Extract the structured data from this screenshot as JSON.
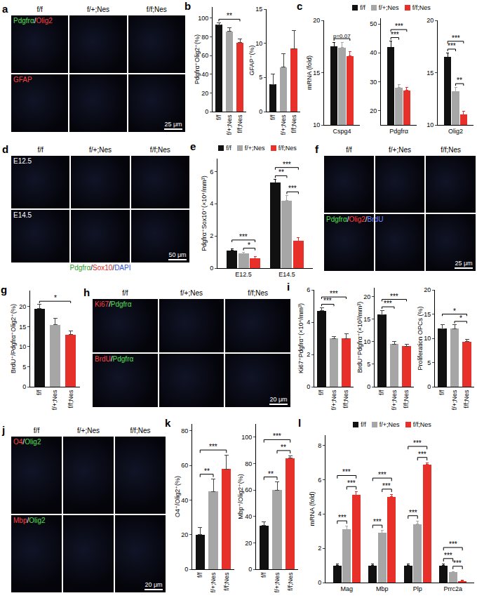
{
  "chart_data": [
    {
      "panel": "b",
      "type": "bar",
      "grid": false,
      "subplots": [
        {
          "ylabel": "Pdgfrα⁺Olig2⁺(%)",
          "ylim": [
            0,
            112
          ],
          "yticks": [
            0,
            20,
            40,
            60,
            80,
            100
          ],
          "categories": [
            "f/f",
            "f/+;Nes",
            "f/f;Nes"
          ],
          "colors": [
            "#111111",
            "#a6a6a6",
            "#e8302a"
          ],
          "values": [
            93,
            86,
            74
          ],
          "error": [
            2,
            4,
            4
          ],
          "brackets": [
            {
              "from": 0,
              "to": 2,
              "text": "**"
            }
          ]
        },
        {
          "ylabel": "GFAP⁺(%)",
          "ylim": [
            0,
            15
          ],
          "yticks": [
            0,
            5,
            10,
            15
          ],
          "categories": [
            "f/f",
            "f/+;Nes",
            "f/f;Nes"
          ],
          "colors": [
            "#111111",
            "#a6a6a6",
            "#e8302a"
          ],
          "values": [
            4,
            6.5,
            9.2
          ],
          "error": [
            1.5,
            2,
            2.7
          ],
          "brackets": []
        }
      ]
    },
    {
      "panel": "c",
      "type": "bar",
      "grid": false,
      "legend": "top",
      "subplots": [
        {
          "ylabel": "mRNA (fold)",
          "ylim": [
            10,
            20
          ],
          "yticks": [
            10,
            15,
            20
          ],
          "categories": [
            "Cspg4"
          ],
          "series": [
            {
              "name": "f/f",
              "color": "#111111",
              "values": [
                17.5
              ],
              "error": [
                0.4
              ]
            },
            {
              "name": "f/+;Nes",
              "color": "#a6a6a6",
              "values": [
                17.4
              ],
              "error": [
                0.5
              ]
            },
            {
              "name": "f/f;Nes",
              "color": "#e8302a",
              "values": [
                16.6
              ],
              "error": [
                0.4
              ]
            }
          ],
          "brackets": [
            {
              "group": 0,
              "from": 0,
              "to": 2,
              "text": "p=0.07"
            }
          ]
        },
        {
          "ylim": [
            15,
            52
          ],
          "yticks": [
            20,
            30,
            40,
            50
          ],
          "categories": [
            "Pdgfrα"
          ],
          "series": [
            {
              "name": "f/f",
              "color": "#111111",
              "values": [
                42
              ],
              "error": [
                2
              ]
            },
            {
              "name": "f/+;Nes",
              "color": "#a6a6a6",
              "values": [
                28
              ],
              "error": [
                1
              ]
            },
            {
              "name": "f/f;Nes",
              "color": "#e8302a",
              "values": [
                27
              ],
              "error": [
                1
              ]
            }
          ],
          "brackets": [
            {
              "group": 0,
              "from": 0,
              "to": 1,
              "text": "***"
            },
            {
              "group": 0,
              "from": 0,
              "to": 2,
              "text": "***"
            }
          ]
        },
        {
          "ylim": [
            10,
            20
          ],
          "yticks": [
            10,
            15,
            20
          ],
          "categories": [
            "Olig2"
          ],
          "series": [
            {
              "name": "f/f",
              "color": "#111111",
              "values": [
                16.5
              ],
              "error": [
                0.4
              ]
            },
            {
              "name": "f/+;Nes",
              "color": "#a6a6a6",
              "values": [
                13.2
              ],
              "error": [
                0.4
              ]
            },
            {
              "name": "f/f;Nes",
              "color": "#e8302a",
              "values": [
                11.0
              ],
              "error": [
                0.3
              ]
            }
          ],
          "brackets": [
            {
              "group": 0,
              "from": 0,
              "to": 1,
              "text": "***"
            },
            {
              "group": 0,
              "from": 1,
              "to": 2,
              "text": "**"
            },
            {
              "group": 0,
              "from": 0,
              "to": 2,
              "text": "***"
            }
          ]
        }
      ]
    },
    {
      "panel": "e",
      "type": "bar",
      "grid": false,
      "legend": "top",
      "subplots": [
        {
          "ylabel": "Pdgfrα⁺Sox10⁺(×10⁴/mm³)",
          "ylim": [
            0,
            6.8
          ],
          "yticks": [
            0,
            2,
            4,
            6
          ],
          "categories": [
            "E12.5",
            "E14.5"
          ],
          "series": [
            {
              "name": "f/f",
              "color": "#111111",
              "values": [
                1.1,
                5.3
              ],
              "error": [
                0.1,
                0.2
              ]
            },
            {
              "name": "f/+;Nes",
              "color": "#a6a6a6",
              "values": [
                0.9,
                4.2
              ],
              "error": [
                0.1,
                0.3
              ]
            },
            {
              "name": "f/f;Nes",
              "color": "#e8302a",
              "values": [
                0.6,
                1.7
              ],
              "error": [
                0.1,
                0.2
              ]
            }
          ],
          "brackets": [
            {
              "group": 0,
              "from": 1,
              "to": 2,
              "text": "*"
            },
            {
              "group": 0,
              "from": 0,
              "to": 2,
              "text": "***"
            },
            {
              "group": 1,
              "from": 0,
              "to": 1,
              "text": "**"
            },
            {
              "group": 1,
              "from": 1,
              "to": 2,
              "text": "***"
            },
            {
              "group": 1,
              "from": 0,
              "to": 2,
              "text": "***"
            }
          ]
        }
      ]
    },
    {
      "panel": "g",
      "type": "bar",
      "grid": false,
      "subplots": [
        {
          "ylabel": "BrdU⁺/Pdgfrα⁺Olig2⁺(%)",
          "ylim": [
            0,
            24
          ],
          "yticks": [
            0,
            5,
            10,
            15,
            20
          ],
          "categories": [
            "f/f",
            "f/+;Nes",
            "f/f;Nes"
          ],
          "colors": [
            "#111111",
            "#a6a6a6",
            "#e8302a"
          ],
          "values": [
            19.5,
            15.5,
            13
          ],
          "error": [
            1,
            1.5,
            1
          ],
          "brackets": [
            {
              "from": 0,
              "to": 2,
              "text": "*"
            }
          ]
        }
      ]
    },
    {
      "panel": "i",
      "type": "bar",
      "grid": false,
      "subplots": [
        {
          "ylabel": "Ki67⁺Pdgfrα⁺(×10⁴/mm³)",
          "ylim": [
            0,
            6
          ],
          "yticks": [
            0,
            2,
            4,
            6
          ],
          "categories": [
            "f/f",
            "f/+;Nes",
            "f/f;Nes"
          ],
          "colors": [
            "#111111",
            "#a6a6a6",
            "#e8302a"
          ],
          "values": [
            4.7,
            3.0,
            3.0
          ],
          "error": [
            0.2,
            0.1,
            0.3
          ],
          "brackets": [
            {
              "from": 0,
              "to": 1,
              "text": "***"
            },
            {
              "from": 0,
              "to": 2,
              "text": "***"
            }
          ]
        },
        {
          "ylabel": "BrdU⁺Pdgfrα⁺(×10³/mm³)",
          "ylim": [
            0,
            22
          ],
          "yticks": [
            0,
            5,
            10,
            15,
            20
          ],
          "categories": [
            "f/f",
            "f/+;Nes",
            "f/f;Nes"
          ],
          "colors": [
            "#111111",
            "#a6a6a6",
            "#e8302a"
          ],
          "values": [
            16,
            9.5,
            9
          ],
          "error": [
            1,
            0.5,
            0.5
          ],
          "brackets": [
            {
              "from": 0,
              "to": 1,
              "text": "***"
            },
            {
              "from": 0,
              "to": 2,
              "text": "***"
            }
          ]
        },
        {
          "ylabel": "Proliferation OPCs (%)",
          "ylim": [
            0,
            20
          ],
          "yticks": [
            0,
            5,
            10,
            15,
            20
          ],
          "categories": [
            "f/f",
            "f/+;Nes",
            "f/f;Nes"
          ],
          "colors": [
            "#111111",
            "#a6a6a6",
            "#e8302a"
          ],
          "values": [
            12,
            12,
            9.3
          ],
          "error": [
            0.8,
            0.8,
            0.5
          ],
          "brackets": [
            {
              "from": 1,
              "to": 2,
              "text": "*"
            },
            {
              "from": 0,
              "to": 2,
              "text": "*"
            }
          ]
        }
      ]
    },
    {
      "panel": "k",
      "type": "bar",
      "grid": false,
      "subplots": [
        {
          "ylabel": "O4⁺/Olig2⁺(%)",
          "ylim": [
            0,
            84
          ],
          "yticks": [
            0,
            20,
            40,
            60,
            80
          ],
          "categories": [
            "f/f",
            "f/+;Nes",
            "f/f;Nes"
          ],
          "colors": [
            "#111111",
            "#a6a6a6",
            "#e8302a"
          ],
          "values": [
            20,
            45,
            58
          ],
          "error": [
            4,
            7,
            8
          ],
          "brackets": [
            {
              "from": 0,
              "to": 1,
              "text": "**"
            },
            {
              "from": 0,
              "to": 2,
              "text": "***"
            }
          ]
        },
        {
          "ylabel": "Mbp⁺/Olig2⁺(%)",
          "ylim": [
            0,
            110
          ],
          "yticks": [
            0,
            20,
            40,
            60,
            80,
            100
          ],
          "categories": [
            "f/f",
            "f/+;Nes",
            "f/f;Nes"
          ],
          "colors": [
            "#111111",
            "#a6a6a6",
            "#e8302a"
          ],
          "values": [
            33,
            60,
            84
          ],
          "error": [
            3,
            6,
            2
          ],
          "brackets": [
            {
              "from": 0,
              "to": 1,
              "text": "**"
            },
            {
              "from": 1,
              "to": 2,
              "text": "**"
            },
            {
              "from": 0,
              "to": 2,
              "text": "***"
            }
          ]
        }
      ]
    },
    {
      "panel": "l",
      "type": "bar",
      "grid": false,
      "legend": "top",
      "subplots": [
        {
          "ylabel": "mRNA (fold)",
          "ylim": [
            0,
            8.6
          ],
          "yticks": [
            0,
            2,
            4,
            6,
            8
          ],
          "categories": [
            "Mag",
            "Mbp",
            "Plp",
            "Prrc2a"
          ],
          "series": [
            {
              "name": "f/f",
              "color": "#111111",
              "values": [
                1,
                1,
                1,
                1
              ],
              "error": [
                0.1,
                0.1,
                0.1,
                0.1
              ]
            },
            {
              "name": "f/+;Nes",
              "color": "#a6a6a6",
              "values": [
                3.1,
                2.9,
                3.4,
                0.6
              ],
              "error": [
                0.2,
                0.15,
                0.2,
                0.05
              ]
            },
            {
              "name": "f/f;Nes",
              "color": "#e8302a",
              "values": [
                5.1,
                5.0,
                6.9,
                0.1
              ],
              "error": [
                0.2,
                0.15,
                0.1,
                0.03
              ]
            }
          ],
          "brackets": [
            {
              "group": 0,
              "from": 0,
              "to": 1,
              "text": "***"
            },
            {
              "group": 0,
              "from": 1,
              "to": 2,
              "text": "***"
            },
            {
              "group": 0,
              "from": 0,
              "to": 2,
              "text": "***"
            },
            {
              "group": 1,
              "from": 0,
              "to": 1,
              "text": "***"
            },
            {
              "group": 1,
              "from": 1,
              "to": 2,
              "text": "***"
            },
            {
              "group": 1,
              "from": 0,
              "to": 2,
              "text": "***"
            },
            {
              "group": 2,
              "from": 0,
              "to": 1,
              "text": "***"
            },
            {
              "group": 2,
              "from": 1,
              "to": 2,
              "text": "***"
            },
            {
              "group": 2,
              "from": 0,
              "to": 2,
              "text": "***"
            },
            {
              "group": 3,
              "from": 0,
              "to": 1,
              "text": "***"
            },
            {
              "group": 3,
              "from": 1,
              "to": 2,
              "text": "***"
            },
            {
              "group": 3,
              "from": 0,
              "to": 2,
              "text": "***"
            }
          ]
        }
      ]
    }
  ],
  "image_panels": [
    {
      "panel": "a",
      "columns": [
        "f/f",
        "f/+;Nes",
        "f/f;Nes"
      ],
      "rows": [
        {
          "label": [
            {
              "text": "Pdgfrα",
              "color": "#52e052"
            },
            {
              "text": "/",
              "color": "#ffffff"
            },
            {
              "text": "Olig2",
              "color": "#ff4040"
            }
          ]
        },
        {
          "label": [
            {
              "text": "GFAP",
              "color": "#ff4040"
            }
          ]
        }
      ],
      "scale_bar": "25 μm"
    },
    {
      "panel": "d",
      "columns": [
        "f/f",
        "f/+;Nes",
        "f/f;Nes"
      ],
      "rows": [
        {
          "label": [
            {
              "text": "E12.5",
              "color": "#ffffff"
            }
          ]
        },
        {
          "label": [
            {
              "text": "E14.5",
              "color": "#ffffff"
            }
          ]
        }
      ],
      "caption": [
        {
          "text": "Pdgfrα",
          "color": "#2ca02c"
        },
        {
          "text": "/",
          "color": "#000000"
        },
        {
          "text": "Sox10",
          "color": "#e0281e"
        },
        {
          "text": "/",
          "color": "#000000"
        },
        {
          "text": "DAPI",
          "color": "#3050e0"
        }
      ],
      "scale_bar": "50 μm"
    },
    {
      "panel": "f",
      "columns": [
        "f/f",
        "f/+;Nes",
        "f/f;Nes"
      ],
      "rows": [
        {},
        {
          "label": [
            {
              "text": "Pdgfrα",
              "color": "#52e052"
            },
            {
              "text": "/",
              "color": "#ffffff"
            },
            {
              "text": "Olig2",
              "color": "#ff4040"
            },
            {
              "text": "/",
              "color": "#ffffff"
            },
            {
              "text": "BrdU",
              "color": "#6f8cff"
            }
          ]
        }
      ],
      "scale_bar": "25 μm"
    },
    {
      "panel": "h",
      "columns": [
        "f/f",
        "f/+;Nes",
        "f/f;Nes"
      ],
      "rows": [
        {
          "label": [
            {
              "text": "Ki67",
              "color": "#ff4040"
            },
            {
              "text": "/",
              "color": "#ffffff"
            },
            {
              "text": "Pdgfrα",
              "color": "#52e052"
            }
          ]
        },
        {
          "label": [
            {
              "text": "BrdU",
              "color": "#ff4040"
            },
            {
              "text": "/",
              "color": "#ffffff"
            },
            {
              "text": "Pdgfrα",
              "color": "#52e052"
            }
          ]
        }
      ],
      "scale_bar": "20 μm"
    },
    {
      "panel": "j",
      "columns": [
        "f/f",
        "f/+;Nes",
        "f/f;Nes"
      ],
      "rows": [
        {
          "label": [
            {
              "text": "O4",
              "color": "#ff4040"
            },
            {
              "text": "/",
              "color": "#ffffff"
            },
            {
              "text": "Olig2",
              "color": "#52e052"
            }
          ]
        },
        {
          "label": [
            {
              "text": "Mbp",
              "color": "#ff4040"
            },
            {
              "text": "/",
              "color": "#ffffff"
            },
            {
              "text": "Olig2",
              "color": "#52e052"
            }
          ]
        }
      ],
      "scale_bar": "20 μm"
    }
  ]
}
